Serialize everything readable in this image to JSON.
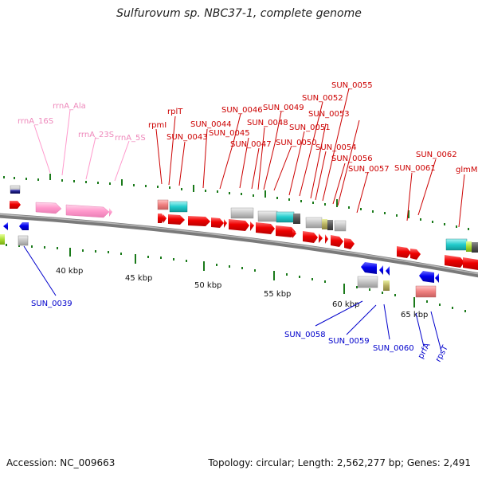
{
  "title": "Sulfurovum sp. NBC37-1, complete genome",
  "footer": {
    "accession": "Accession: NC_009663",
    "stats": "Topology: circular; Length: 2,562,277 bp; Genes: 2,491"
  },
  "ruler_labels": [
    "40 kbp",
    "45 kbp",
    "50 kbp",
    "55 kbp",
    "60 kbp",
    "65 kbp"
  ],
  "colors": {
    "forward_cds": "#ff0000",
    "reverse_cds": "#0000ff",
    "rrna": "#ff99cc",
    "trna": "#ff99cc",
    "gray_feature": "#c8c8c8",
    "cyan_feature": "#33cccc",
    "backbone": "#808080",
    "tick": "#1a7a1a"
  },
  "labels": {
    "rrnA_16S": "rrnA_16S",
    "rrnA_Ala": "rrnA_Ala",
    "rrnA_23S": "rrnA_23S",
    "rrnA_5S": "rrnA_5S",
    "rpmI": "rpmI",
    "rplT": "rplT",
    "SUN_0043": "SUN_0043",
    "SUN_0044": "SUN_0044",
    "SUN_0045": "SUN_0045",
    "SUN_0046": "SUN_0046",
    "SUN_0047": "SUN_0047",
    "SUN_0048": "SUN_0048",
    "SUN_0049": "SUN_0049",
    "SUN_0050": "SUN_0050",
    "SUN_0051": "SUN_0051",
    "SUN_0052": "SUN_0052",
    "SUN_0053": "SUN_0053",
    "SUN_0054": "SUN_0054",
    "SUN_0055": "SUN_0055",
    "SUN_0056": "SUN_0056",
    "SUN_0057": "SUN_0057",
    "SUN_0061": "SUN_0061",
    "SUN_0062": "SUN_0062",
    "glmM": "glmM",
    "SUN_0039": "SUN_0039",
    "SUN_0058": "SUN_0058",
    "SUN_0059": "SUN_0059",
    "SUN_0060": "SUN_0060",
    "prfA": "prfA",
    "rpsT": "rpsT"
  }
}
